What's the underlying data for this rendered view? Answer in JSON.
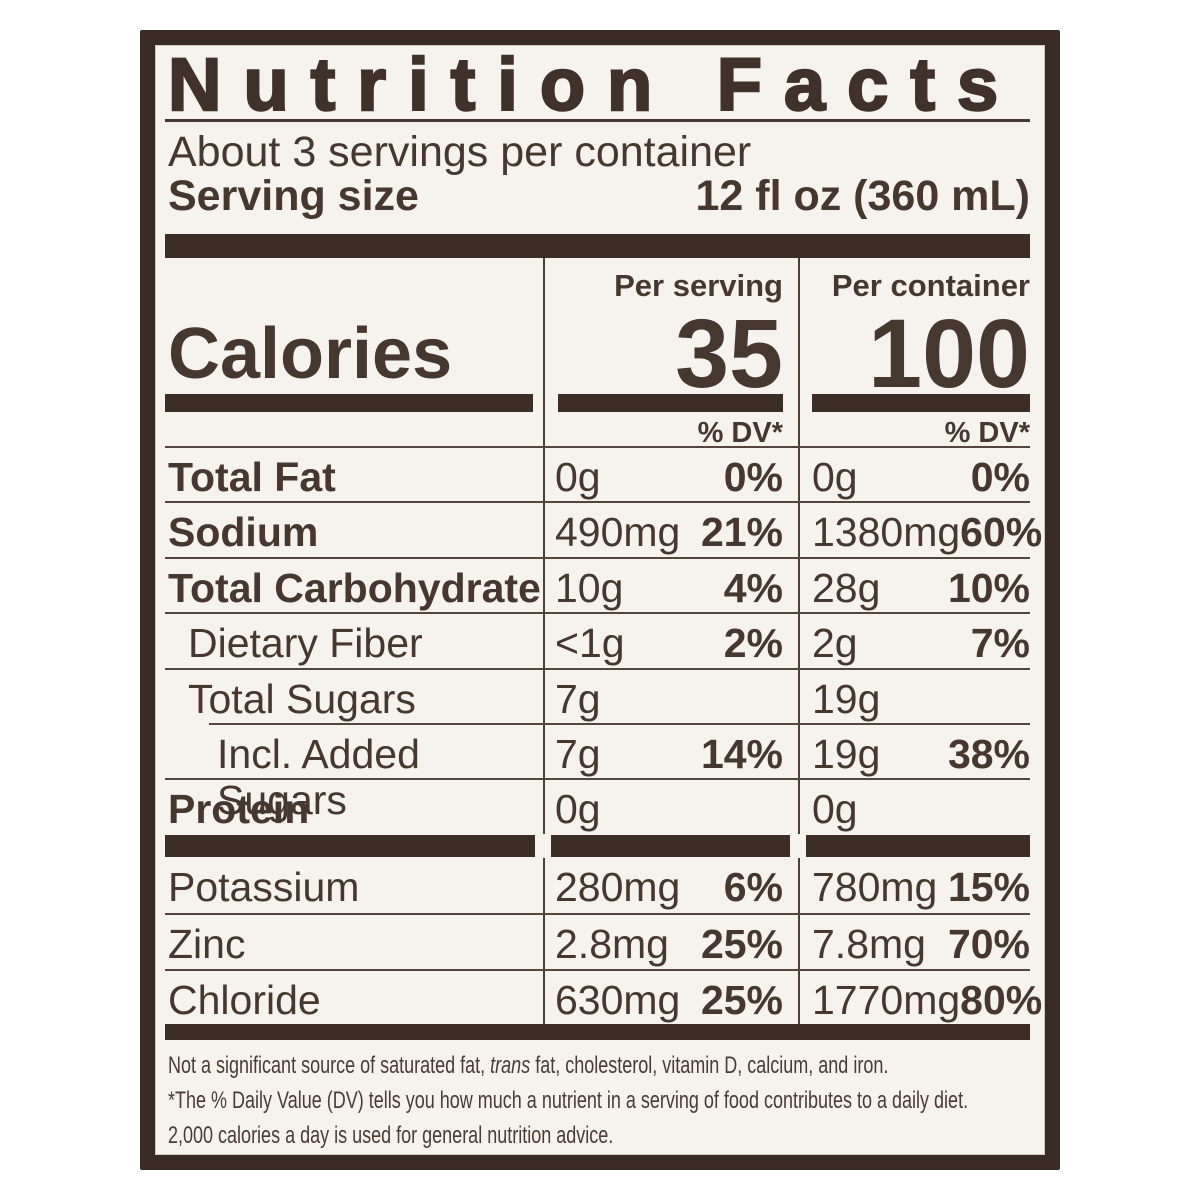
{
  "label": {
    "title": "Nutrition Facts",
    "servings_per_container": "About 3 servings per container",
    "serving_size_label": "Serving size",
    "serving_size_value": "12 fl oz (360 mL)",
    "calories": {
      "label": "Calories",
      "per_serving_header": "Per serving",
      "per_container_header": "Per container",
      "per_serving_value": "35",
      "per_container_value": "100",
      "dv_header": "% DV*"
    },
    "rows": [
      {
        "name": "Total Fat",
        "serving_amount": "0g",
        "serving_dv": "0%",
        "container_amount": "0g",
        "container_dv": "0%"
      },
      {
        "name": "Sodium",
        "serving_amount": "490mg",
        "serving_dv": "21%",
        "container_amount": "1380mg",
        "container_dv": "60%"
      },
      {
        "name": "Total Carbohydrate",
        "serving_amount": "10g",
        "serving_dv": "4%",
        "container_amount": "28g",
        "container_dv": "10%"
      },
      {
        "name": "Dietary Fiber",
        "serving_amount": "<1g",
        "serving_dv": "2%",
        "container_amount": "2g",
        "container_dv": "7%"
      },
      {
        "name": "Total Sugars",
        "serving_amount": "7g",
        "serving_dv": "",
        "container_amount": "19g",
        "container_dv": ""
      },
      {
        "name": "Incl. Added Sugars",
        "serving_amount": "7g",
        "serving_dv": "14%",
        "container_amount": "19g",
        "container_dv": "38%"
      },
      {
        "name": "Protein",
        "serving_amount": "0g",
        "serving_dv": "",
        "container_amount": "0g",
        "container_dv": ""
      },
      {
        "name": "Potassium",
        "serving_amount": "280mg",
        "serving_dv": "6%",
        "container_amount": "780mg",
        "container_dv": "15%"
      },
      {
        "name": "Zinc",
        "serving_amount": "2.8mg",
        "serving_dv": "25%",
        "container_amount": "7.8mg",
        "container_dv": "70%"
      },
      {
        "name": "Chloride",
        "serving_amount": "630mg",
        "serving_dv": "25%",
        "container_amount": "1770mg",
        "container_dv": "80%"
      }
    ],
    "footnotes": {
      "line1_pre": "Not a significant source of saturated fat, ",
      "line1_italic": "trans",
      "line1_post": " fat, cholesterol, vitamin D, calcium, and iron.",
      "line2": "*The % Daily Value (DV) tells you how much a nutrient in a serving of food contributes to a daily diet.",
      "line3": "2,000 calories a day is used for general nutrition advice."
    },
    "colors": {
      "frame": "#392a23",
      "label_background": "#f6f3ef",
      "ink": "#46382f",
      "bar": "#3c2d25"
    }
  }
}
